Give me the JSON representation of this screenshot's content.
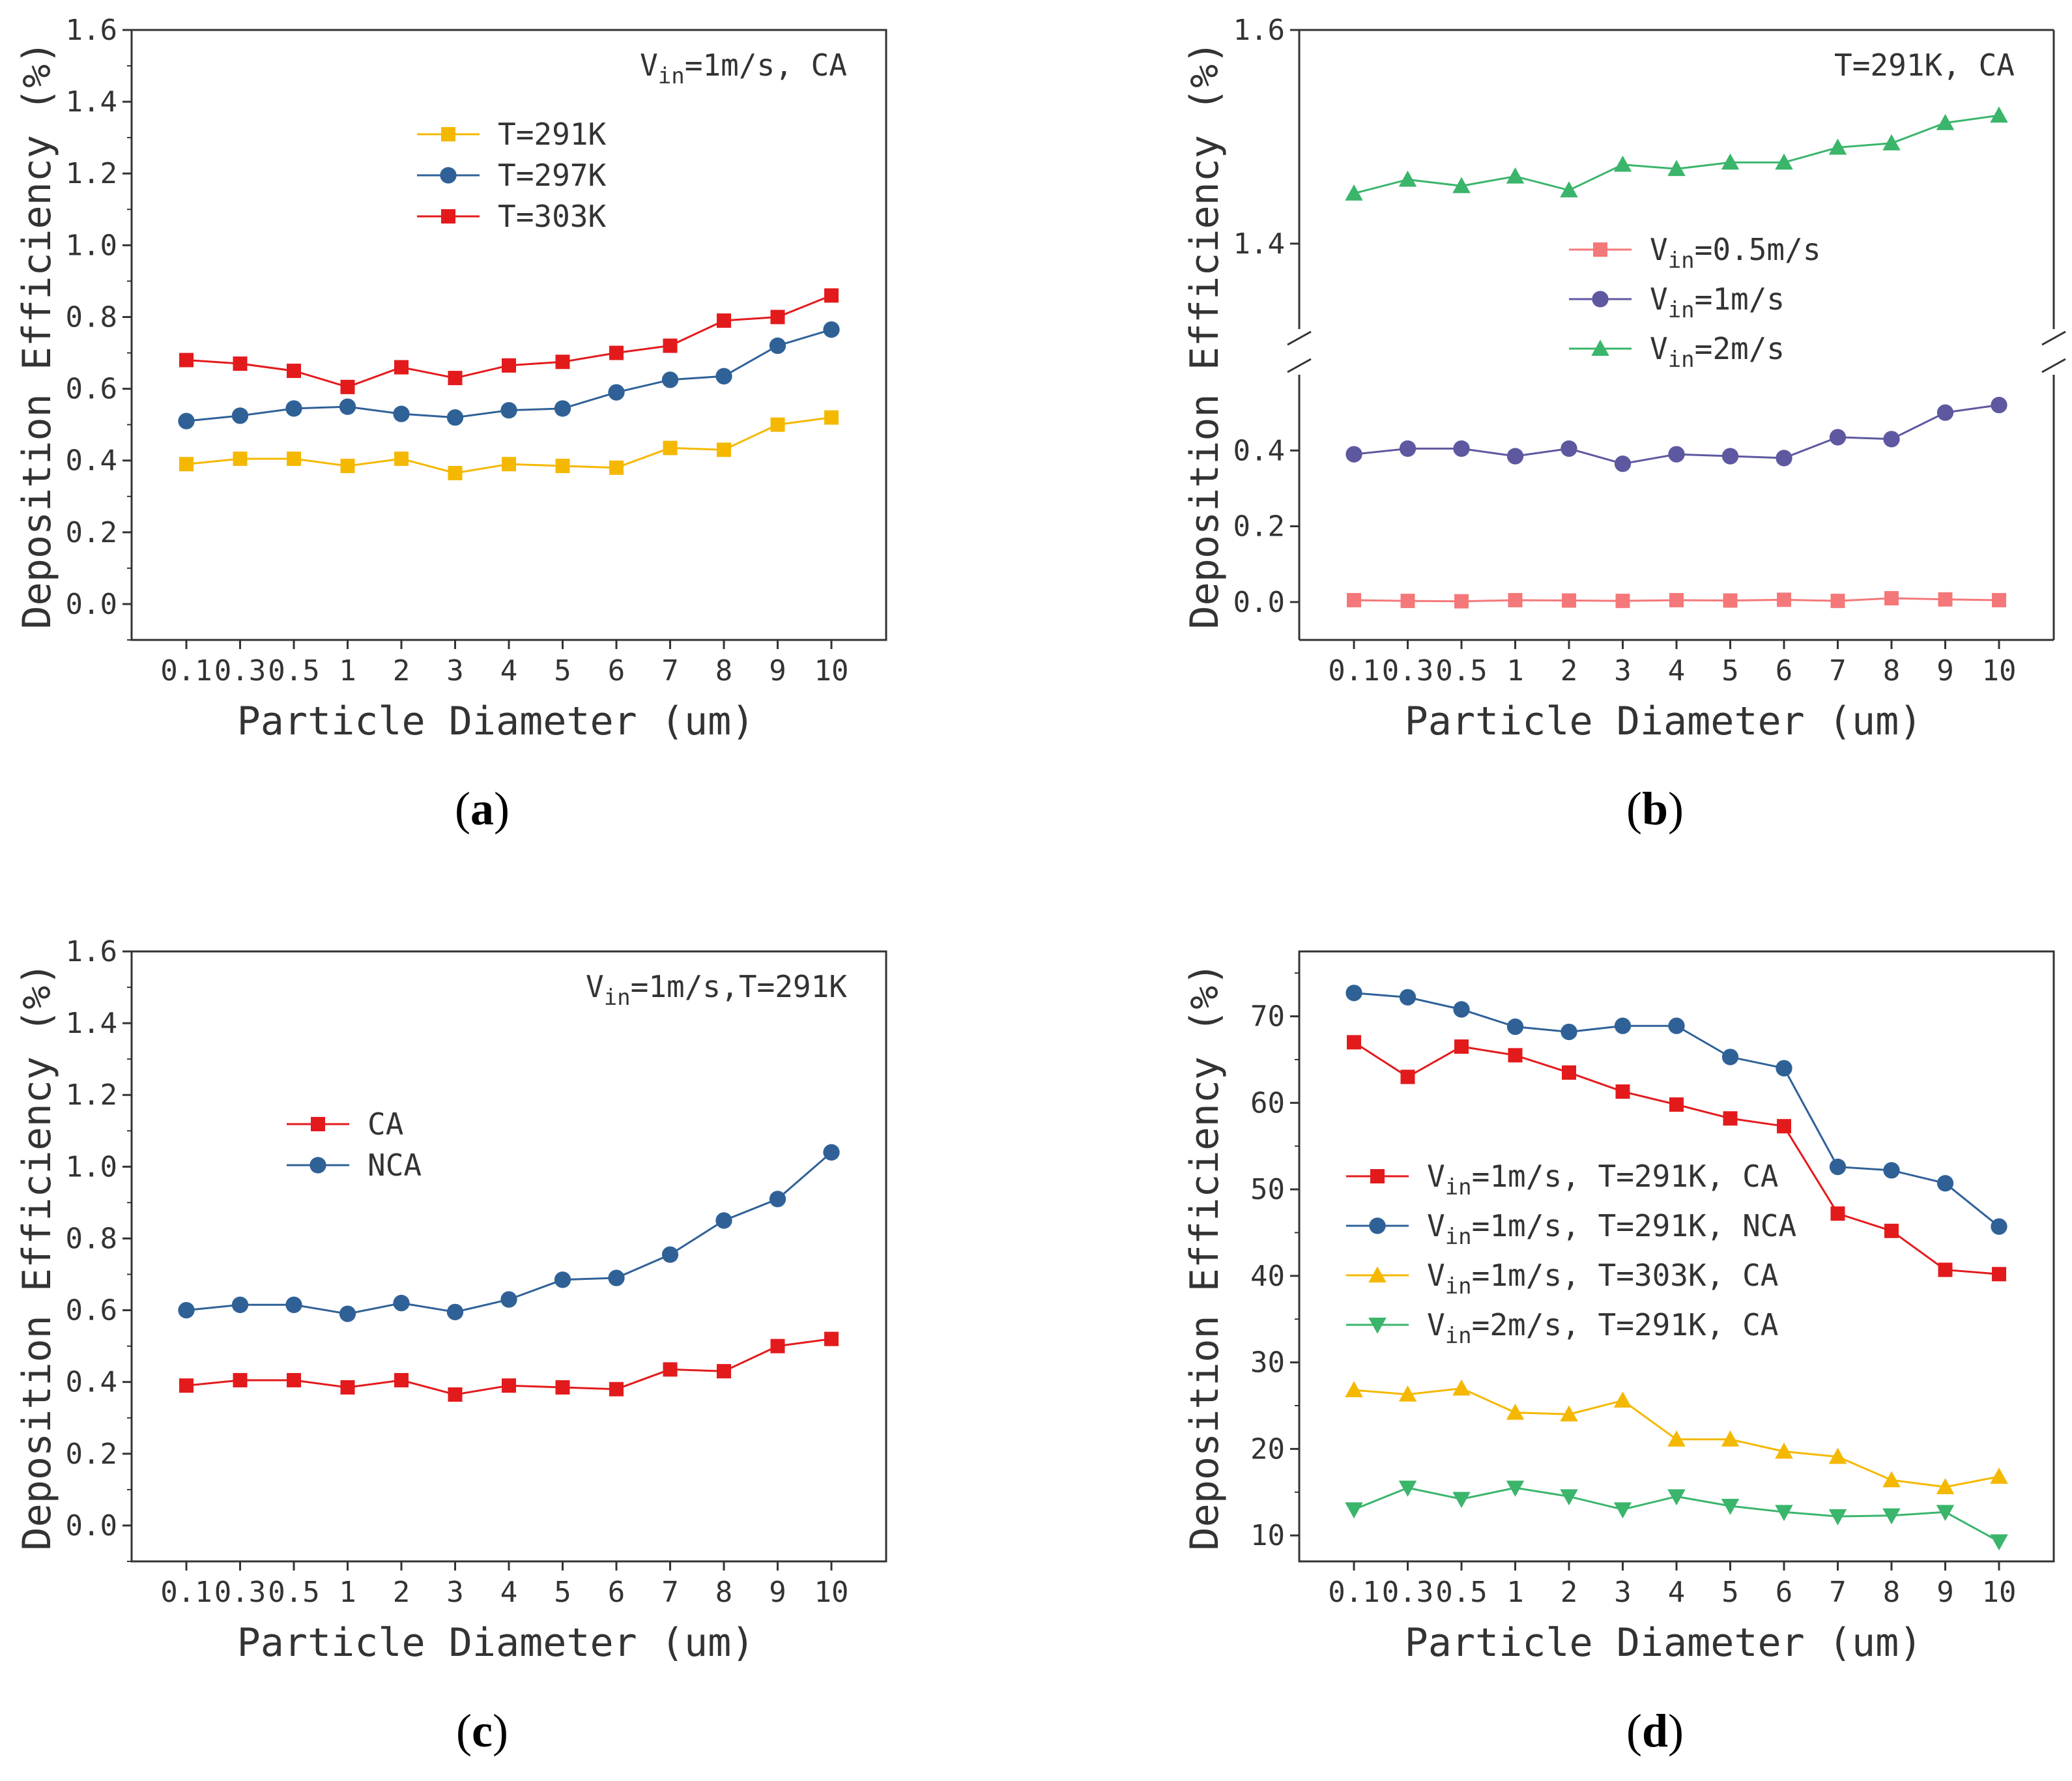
{
  "figure": {
    "panel_labels": [
      {
        "open": "(",
        "letter": "a",
        "close": ")"
      },
      {
        "open": "(",
        "letter": "b",
        "close": ")"
      },
      {
        "open": "(",
        "letter": "c",
        "close": ")"
      },
      {
        "open": "(",
        "letter": "d",
        "close": ")"
      }
    ]
  },
  "chart_data": [
    {
      "id": "a",
      "type": "line",
      "xlabel": "Particle Diameter (um)",
      "ylabel": "Deposition Efficiency (%)",
      "categories": [
        "0.1",
        "0.3",
        "0.5",
        "1",
        "2",
        "3",
        "4",
        "5",
        "6",
        "7",
        "8",
        "9",
        "10"
      ],
      "ylim": [
        -0.1,
        1.6
      ],
      "yticks": [
        "0.0",
        "0.2",
        "0.4",
        "0.6",
        "0.8",
        "1.0",
        "1.2",
        "1.4",
        "1.6"
      ],
      "annotation": {
        "pre": "V",
        "sub": "in",
        "post": "=1m/s, CA"
      },
      "legend_position": "upper-center",
      "series": [
        {
          "name": "T=291K",
          "label": {
            "pre": "T=291K",
            "sub": "",
            "post": ""
          },
          "color": "#f5b800",
          "marker": "square",
          "values": [
            0.39,
            0.405,
            0.405,
            0.385,
            0.405,
            0.365,
            0.39,
            0.385,
            0.38,
            0.435,
            0.43,
            0.5,
            0.52
          ]
        },
        {
          "name": "T=297K",
          "label": {
            "pre": "T=297K",
            "sub": "",
            "post": ""
          },
          "color": "#2f6197",
          "marker": "circle",
          "values": [
            0.51,
            0.525,
            0.545,
            0.55,
            0.53,
            0.52,
            0.54,
            0.545,
            0.59,
            0.625,
            0.635,
            0.72,
            0.765
          ]
        },
        {
          "name": "T=303K",
          "label": {
            "pre": "T=303K",
            "sub": "",
            "post": ""
          },
          "color": "#e31a1c",
          "marker": "square",
          "values": [
            0.68,
            0.67,
            0.65,
            0.605,
            0.66,
            0.63,
            0.665,
            0.675,
            0.7,
            0.72,
            0.79,
            0.8,
            0.86
          ]
        }
      ]
    },
    {
      "id": "b",
      "type": "line",
      "broken_axis": true,
      "xlabel": "Particle Diameter (um)",
      "ylabel": "Deposition Efficiency (%)",
      "categories": [
        "0.1",
        "0.3",
        "0.5",
        "1",
        "2",
        "3",
        "4",
        "5",
        "6",
        "7",
        "8",
        "9",
        "10"
      ],
      "lower_ylim": [
        -0.1,
        0.6
      ],
      "upper_ylim": [
        1.32,
        1.6
      ],
      "lower_yticks": [
        "0.0",
        "0.2",
        "0.4"
      ],
      "upper_yticks": [
        "1.4",
        "1.6"
      ],
      "annotation": {
        "pre": "T=291K, CA",
        "sub": "",
        "post": ""
      },
      "legend_position": "center-left",
      "series": [
        {
          "name": "Vin=0.5m/s",
          "label": {
            "pre": "V",
            "sub": "in",
            "post": "=0.5m/s"
          },
          "color": "#f4787a",
          "marker": "square",
          "values": [
            0.005,
            0.003,
            0.002,
            0.005,
            0.004,
            0.003,
            0.005,
            0.004,
            0.006,
            0.003,
            0.01,
            0.007,
            0.005
          ]
        },
        {
          "name": "Vin=1m/s",
          "label": {
            "pre": "V",
            "sub": "in",
            "post": "=1m/s"
          },
          "color": "#5e58a0",
          "marker": "circle",
          "values": [
            0.39,
            0.405,
            0.405,
            0.385,
            0.405,
            0.365,
            0.39,
            0.385,
            0.38,
            0.435,
            0.43,
            0.5,
            0.52
          ]
        },
        {
          "name": "Vin=2m/s",
          "label": {
            "pre": "V",
            "sub": "in",
            "post": "=2m/s"
          },
          "color": "#3ab56b",
          "marker": "triangle-up",
          "values": [
            1.447,
            1.46,
            1.454,
            1.463,
            1.45,
            1.474,
            1.47,
            1.476,
            1.476,
            1.49,
            1.494,
            1.513,
            1.52
          ]
        }
      ]
    },
    {
      "id": "c",
      "type": "line",
      "xlabel": "Particle Diameter (um)",
      "ylabel": "Deposition Efficiency (%)",
      "categories": [
        "0.1",
        "0.3",
        "0.5",
        "1",
        "2",
        "3",
        "4",
        "5",
        "6",
        "7",
        "8",
        "9",
        "10"
      ],
      "ylim": [
        -0.1,
        1.6
      ],
      "yticks": [
        "0.0",
        "0.2",
        "0.4",
        "0.6",
        "0.8",
        "1.0",
        "1.2",
        "1.4",
        "1.6"
      ],
      "annotation": {
        "pre": "V",
        "sub": "in",
        "post": "=1m/s,T=291K"
      },
      "legend_position": "upper-left",
      "series": [
        {
          "name": "CA",
          "label": {
            "pre": "CA",
            "sub": "",
            "post": ""
          },
          "color": "#e31a1c",
          "marker": "square",
          "values": [
            0.39,
            0.405,
            0.405,
            0.385,
            0.405,
            0.365,
            0.39,
            0.385,
            0.38,
            0.435,
            0.43,
            0.5,
            0.52
          ]
        },
        {
          "name": "NCA",
          "label": {
            "pre": "NCA",
            "sub": "",
            "post": ""
          },
          "color": "#2f6197",
          "marker": "circle",
          "values": [
            0.6,
            0.615,
            0.615,
            0.59,
            0.62,
            0.595,
            0.63,
            0.685,
            0.69,
            0.755,
            0.85,
            0.91,
            1.04
          ]
        }
      ]
    },
    {
      "id": "d",
      "type": "line",
      "xlabel": "Particle Diameter (um)",
      "ylabel": "Deposition Efficiency (%)",
      "categories": [
        "0.1",
        "0.3",
        "0.5",
        "1",
        "2",
        "3",
        "4",
        "5",
        "6",
        "7",
        "8",
        "9",
        "10"
      ],
      "ylim": [
        7,
        77.5
      ],
      "yticks": [
        "10",
        "20",
        "30",
        "40",
        "50",
        "60",
        "70"
      ],
      "legend_position": "center-left",
      "series": [
        {
          "name": "Vin=1m/s, T=291K, CA",
          "label": {
            "pre": "V",
            "sub": "in",
            "post": "=1m/s, T=291K, CA"
          },
          "color": "#e31a1c",
          "marker": "square",
          "values": [
            67,
            63,
            66.5,
            65.5,
            63.5,
            61.3,
            59.8,
            58.2,
            57.3,
            47.2,
            45.2,
            40.7,
            40.2
          ]
        },
        {
          "name": "Vin=1m/s, T=291K, NCA",
          "label": {
            "pre": "V",
            "sub": "in",
            "post": "=1m/s, T=291K, NCA"
          },
          "color": "#2f6197",
          "marker": "circle",
          "values": [
            72.7,
            72.2,
            70.8,
            68.8,
            68.2,
            68.9,
            68.9,
            65.3,
            64,
            52.6,
            52.2,
            50.7,
            45.7
          ]
        },
        {
          "name": "Vin=1m/s, T=303K, CA",
          "label": {
            "pre": "V",
            "sub": "in",
            "post": "=1m/s, T=303K, CA"
          },
          "color": "#f5b800",
          "marker": "triangle-up",
          "values": [
            26.8,
            26.3,
            27,
            24.2,
            24,
            25.6,
            21.1,
            21.1,
            19.7,
            19.1,
            16.4,
            15.6,
            16.8
          ]
        },
        {
          "name": "Vin=2m/s, T=291K, CA",
          "label": {
            "pre": "V",
            "sub": "in",
            "post": "=2m/s, T=291K, CA"
          },
          "color": "#3ab56b",
          "marker": "triangle-down",
          "values": [
            13,
            15.5,
            14.2,
            15.5,
            14.5,
            13,
            14.5,
            13.4,
            12.7,
            12.2,
            12.3,
            12.7,
            9.3
          ]
        }
      ]
    }
  ]
}
